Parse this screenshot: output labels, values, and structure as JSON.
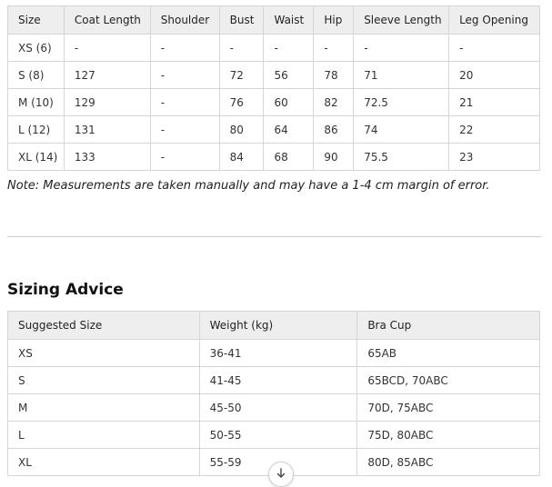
{
  "size_chart": {
    "headers": [
      "Size",
      "Coat Length",
      "Shoulder",
      "Bust",
      "Waist",
      "Hip",
      "Sleeve Length",
      "Leg Opening"
    ],
    "rows": [
      [
        "XS (6)",
        "-",
        "-",
        "-",
        "-",
        "-",
        "-",
        "-"
      ],
      [
        "S (8)",
        "127",
        "-",
        "72",
        "56",
        "78",
        "71",
        "20"
      ],
      [
        "M (10)",
        "129",
        "-",
        "76",
        "60",
        "82",
        "72.5",
        "21"
      ],
      [
        "L (12)",
        "131",
        "-",
        "80",
        "64",
        "86",
        "74",
        "22"
      ],
      [
        "XL (14)",
        "133",
        "-",
        "84",
        "68",
        "90",
        "75.5",
        "23"
      ]
    ]
  },
  "note": "Note: Measurements are taken manually and may have a 1-4 cm margin of error.",
  "sizing_advice": {
    "title": "Sizing Advice",
    "headers": [
      "Suggested Size",
      "Weight (kg)",
      "Bra Cup"
    ],
    "rows": [
      [
        "XS",
        "36-41",
        "65AB"
      ],
      [
        "S",
        "41-45",
        "65BCD, 70ABC"
      ],
      [
        "M",
        "45-50",
        "70D, 75ABC"
      ],
      [
        "L",
        "50-55",
        "75D, 80ABC"
      ],
      [
        "XL",
        "55-59",
        "80D, 85ABC"
      ]
    ]
  },
  "scroll_button": {
    "icon": "arrow-down-icon"
  }
}
